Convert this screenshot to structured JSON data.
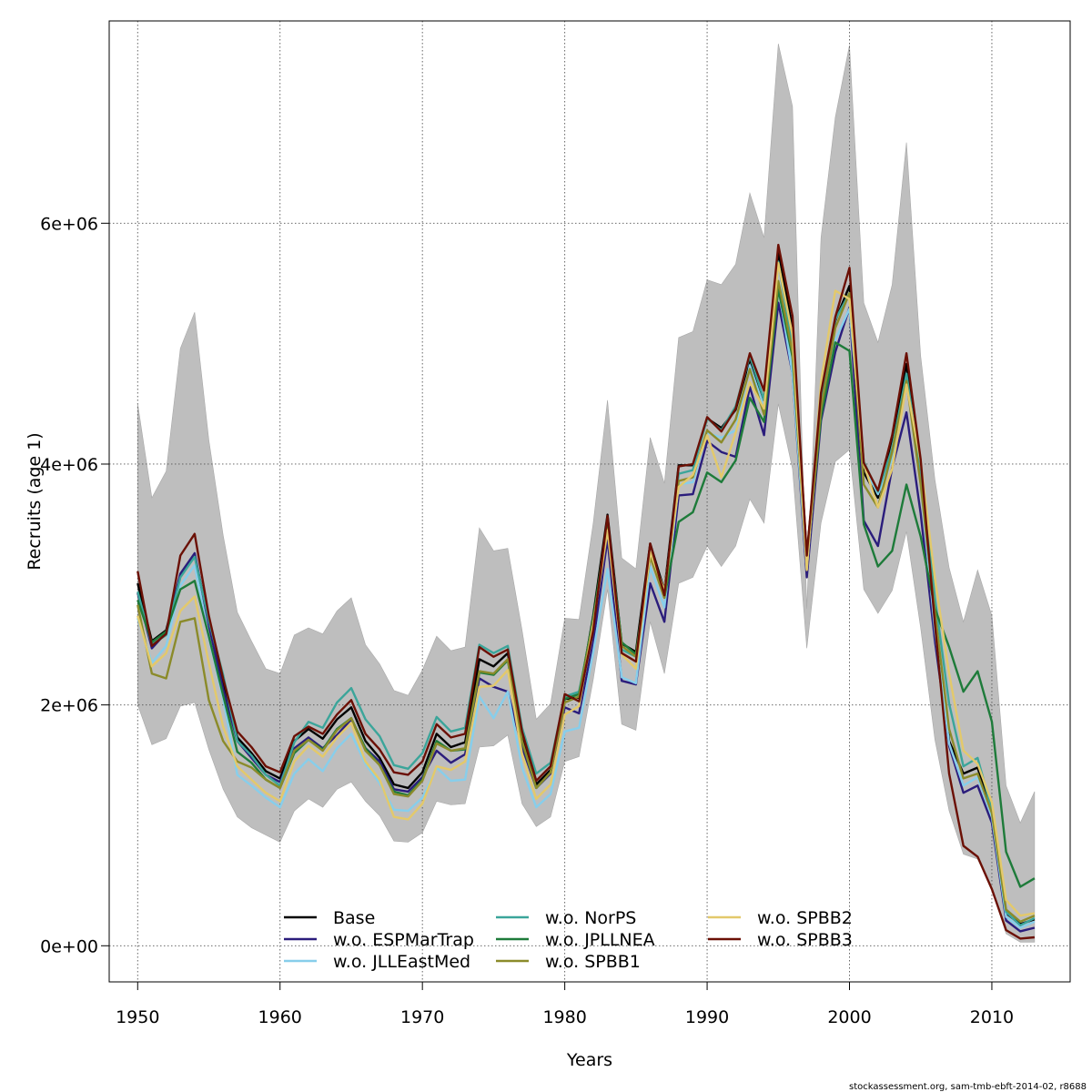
{
  "chart_data": {
    "type": "line",
    "xlabel": "Years",
    "ylabel": "Recruits (age 1)",
    "xlim": [
      1948,
      2015.5
    ],
    "ylim": [
      -300000,
      7680000
    ],
    "xticks": [
      1950,
      1960,
      1970,
      1980,
      1990,
      2000,
      2010
    ],
    "xtick_labels": [
      "1950",
      "1960",
      "1970",
      "1980",
      "1990",
      "2000",
      "2010"
    ],
    "yticks": [
      0,
      2000000,
      4000000,
      6000000
    ],
    "ytick_labels": [
      "0e+00",
      "2e+06",
      "4e+06",
      "6e+06"
    ],
    "grid": true,
    "legend_placement": "bottom",
    "footer": "stockassessment.org, sam-tmb-ebft-2014-02, r8688",
    "band_color": "#bebebe",
    "x": [
      1950,
      1951,
      1952,
      1953,
      1954,
      1955,
      1956,
      1957,
      1958,
      1959,
      1960,
      1961,
      1962,
      1963,
      1964,
      1965,
      1966,
      1967,
      1968,
      1969,
      1970,
      1971,
      1972,
      1973,
      1974,
      1975,
      1976,
      1977,
      1978,
      1979,
      1980,
      1981,
      1982,
      1983,
      1984,
      1985,
      1986,
      1987,
      1988,
      1989,
      1990,
      1991,
      1992,
      1993,
      1994,
      1995,
      1996,
      1997,
      1998,
      1999,
      2000,
      2001,
      2002,
      2003,
      2004,
      2005,
      2006,
      2007,
      2008,
      2009,
      2010,
      2011,
      2012,
      2013
    ],
    "band_upper": [
      4500000,
      3720000,
      3940000,
      4960000,
      5260000,
      4200000,
      3410000,
      2770000,
      2530000,
      2300000,
      2260000,
      2580000,
      2640000,
      2590000,
      2780000,
      2890000,
      2500000,
      2340000,
      2120000,
      2080000,
      2290000,
      2570000,
      2450000,
      2480000,
      3470000,
      3280000,
      3300000,
      2620000,
      1880000,
      2010000,
      2720000,
      2710000,
      3510000,
      4530000,
      3220000,
      3130000,
      4220000,
      3840000,
      5050000,
      5100000,
      5530000,
      5490000,
      5660000,
      6250000,
      5880000,
      7490000,
      6970000,
      2800000,
      5880000,
      6880000,
      7480000,
      5340000,
      5010000,
      5490000,
      6670000,
      4900000,
      3870000,
      3140000,
      2690000,
      3120000,
      2740000,
      1330000,
      1020000,
      1280000
    ],
    "band_lower": [
      2000000,
      1670000,
      1720000,
      1990000,
      2020000,
      1630000,
      1300000,
      1070000,
      980000,
      920000,
      860000,
      1120000,
      1220000,
      1150000,
      1300000,
      1360000,
      1200000,
      1080000,
      870000,
      860000,
      940000,
      1200000,
      1170000,
      1180000,
      1650000,
      1660000,
      1750000,
      1180000,
      990000,
      1070000,
      1530000,
      1570000,
      2210000,
      2960000,
      1840000,
      1790000,
      2690000,
      2260000,
      3010000,
      3060000,
      3320000,
      3150000,
      3320000,
      3710000,
      3510000,
      4500000,
      3960000,
      2470000,
      3510000,
      4020000,
      4120000,
      2960000,
      2760000,
      2950000,
      3440000,
      2640000,
      1710000,
      1120000,
      760000,
      720000,
      470000,
      100000,
      30000,
      30000
    ],
    "series": [
      {
        "name": "Base",
        "color": "#000000",
        "values": [
          3010000,
          2530000,
          2620000,
          3080000,
          3240000,
          2700000,
          2190000,
          1730000,
          1600000,
          1450000,
          1390000,
          1700000,
          1800000,
          1720000,
          1880000,
          1980000,
          1700000,
          1560000,
          1340000,
          1310000,
          1440000,
          1760000,
          1650000,
          1690000,
          2380000,
          2320000,
          2430000,
          1760000,
          1340000,
          1460000,
          2050000,
          2060000,
          2740000,
          3580000,
          2510000,
          2440000,
          3340000,
          2950000,
          3990000,
          3990000,
          4380000,
          4300000,
          4450000,
          4870000,
          4530000,
          5760000,
          5130000,
          3240000,
          4520000,
          5190000,
          5480000,
          3930000,
          3720000,
          4220000,
          4830000,
          3900000,
          2770000,
          1700000,
          1430000,
          1480000,
          1100000,
          270000,
          180000,
          220000
        ]
      },
      {
        "name": "w.o. ESPMarTrap",
        "color": "#2b1d7c",
        "values": [
          2930000,
          2470000,
          2600000,
          3090000,
          3260000,
          2660000,
          2130000,
          1700000,
          1560000,
          1420000,
          1360000,
          1640000,
          1730000,
          1640000,
          1750000,
          1880000,
          1640000,
          1530000,
          1300000,
          1280000,
          1400000,
          1620000,
          1520000,
          1590000,
          2220000,
          2150000,
          2110000,
          1650000,
          1310000,
          1430000,
          1980000,
          1930000,
          2520000,
          3380000,
          2200000,
          2170000,
          3010000,
          2690000,
          3740000,
          3750000,
          4190000,
          4100000,
          4060000,
          4640000,
          4240000,
          5340000,
          4750000,
          3060000,
          4360000,
          4930000,
          5300000,
          3530000,
          3320000,
          3970000,
          4430000,
          3590000,
          2530000,
          1660000,
          1270000,
          1330000,
          1020000,
          210000,
          120000,
          150000
        ]
      },
      {
        "name": "w.o. JLLEastMed",
        "color": "#87ceeb",
        "values": [
          2720000,
          2350000,
          2490000,
          2990000,
          3160000,
          2560000,
          2050000,
          1420000,
          1330000,
          1230000,
          1150000,
          1430000,
          1550000,
          1450000,
          1640000,
          1760000,
          1510000,
          1350000,
          1130000,
          1120000,
          1230000,
          1480000,
          1370000,
          1380000,
          2070000,
          1890000,
          2110000,
          1480000,
          1150000,
          1260000,
          1780000,
          1810000,
          2440000,
          3130000,
          2230000,
          2180000,
          3150000,
          2810000,
          3830000,
          3850000,
          4260000,
          4220000,
          4280000,
          4820000,
          4460000,
          5470000,
          4750000,
          3130000,
          4510000,
          5030000,
          5290000,
          3990000,
          3750000,
          4040000,
          4730000,
          3840000,
          2620000,
          1680000,
          1330000,
          1400000,
          1070000,
          240000,
          150000,
          200000
        ]
      },
      {
        "name": "w.o. NorPS",
        "color": "#3ba59a",
        "values": [
          2940000,
          2500000,
          2580000,
          3060000,
          3230000,
          2700000,
          2250000,
          1700000,
          1580000,
          1420000,
          1330000,
          1690000,
          1860000,
          1810000,
          2020000,
          2140000,
          1880000,
          1740000,
          1500000,
          1470000,
          1600000,
          1900000,
          1780000,
          1810000,
          2500000,
          2430000,
          2490000,
          1810000,
          1430000,
          1520000,
          2070000,
          2110000,
          2670000,
          3530000,
          2460000,
          2400000,
          3250000,
          2930000,
          3920000,
          3950000,
          4380000,
          4280000,
          4480000,
          4900000,
          4530000,
          5680000,
          4970000,
          3180000,
          4560000,
          5200000,
          5420000,
          4020000,
          3770000,
          4130000,
          4750000,
          3950000,
          2890000,
          2010000,
          1490000,
          1560000,
          1130000,
          280000,
          170000,
          230000
        ]
      },
      {
        "name": "w.o. JPLLNEA",
        "color": "#1e7b3a",
        "values": [
          2870000,
          2520000,
          2610000,
          2960000,
          3030000,
          2570000,
          2080000,
          1610000,
          1520000,
          1380000,
          1310000,
          1600000,
          1710000,
          1630000,
          1800000,
          1890000,
          1640000,
          1500000,
          1280000,
          1250000,
          1380000,
          1700000,
          1620000,
          1630000,
          2270000,
          2250000,
          2370000,
          1690000,
          1310000,
          1440000,
          2050000,
          2090000,
          2720000,
          3510000,
          2520000,
          2420000,
          3240000,
          2890000,
          3520000,
          3600000,
          3930000,
          3850000,
          4030000,
          4550000,
          4350000,
          5450000,
          4890000,
          3200000,
          4390000,
          5010000,
          4940000,
          3500000,
          3150000,
          3280000,
          3830000,
          3400000,
          2800000,
          2480000,
          2110000,
          2280000,
          1860000,
          780000,
          490000,
          560000
        ]
      },
      {
        "name": "w.o. SPBB1",
        "color": "#8b8b2a",
        "values": [
          2830000,
          2260000,
          2220000,
          2690000,
          2720000,
          2040000,
          1700000,
          1530000,
          1480000,
          1380000,
          1310000,
          1620000,
          1710000,
          1620000,
          1790000,
          1890000,
          1620000,
          1500000,
          1260000,
          1240000,
          1370000,
          1680000,
          1620000,
          1640000,
          2280000,
          2260000,
          2380000,
          1700000,
          1310000,
          1440000,
          2020000,
          2070000,
          2690000,
          3460000,
          2490000,
          2400000,
          3230000,
          2890000,
          3860000,
          3890000,
          4280000,
          4180000,
          4370000,
          4790000,
          4410000,
          5520000,
          4930000,
          3150000,
          4460000,
          5130000,
          5420000,
          3830000,
          3640000,
          4100000,
          4690000,
          3830000,
          2770000,
          1800000,
          1390000,
          1430000,
          1100000,
          300000,
          200000,
          250000
        ]
      },
      {
        "name": "w.o. SPBB2",
        "color": "#e3c96b",
        "values": [
          2740000,
          2320000,
          2430000,
          2780000,
          2900000,
          2350000,
          1820000,
          1490000,
          1380000,
          1270000,
          1200000,
          1530000,
          1660000,
          1570000,
          1730000,
          1850000,
          1530000,
          1380000,
          1070000,
          1050000,
          1180000,
          1490000,
          1460000,
          1530000,
          2150000,
          2160000,
          2290000,
          1590000,
          1220000,
          1340000,
          1920000,
          1990000,
          2670000,
          3450000,
          2420000,
          2300000,
          3270000,
          2950000,
          3810000,
          3910000,
          4240000,
          3890000,
          4260000,
          4680000,
          4460000,
          5670000,
          5070000,
          3120000,
          4680000,
          5440000,
          5370000,
          4000000,
          3640000,
          3960000,
          4660000,
          4020000,
          3050000,
          2260000,
          1620000,
          1510000,
          1190000,
          380000,
          250000,
          270000
        ]
      },
      {
        "name": "w.o. SPBB3",
        "color": "#6b1005",
        "values": [
          3110000,
          2490000,
          2590000,
          3240000,
          3420000,
          2740000,
          2220000,
          1780000,
          1650000,
          1490000,
          1440000,
          1740000,
          1820000,
          1760000,
          1920000,
          2040000,
          1760000,
          1630000,
          1440000,
          1420000,
          1530000,
          1840000,
          1730000,
          1760000,
          2480000,
          2400000,
          2460000,
          1780000,
          1370000,
          1490000,
          2090000,
          2030000,
          2620000,
          3570000,
          2430000,
          2360000,
          3340000,
          2910000,
          3980000,
          4000000,
          4390000,
          4270000,
          4460000,
          4920000,
          4610000,
          5820000,
          5230000,
          3240000,
          4590000,
          5220000,
          5630000,
          4010000,
          3780000,
          4240000,
          4920000,
          4040000,
          2670000,
          1430000,
          830000,
          740000,
          470000,
          130000,
          60000,
          70000
        ]
      }
    ]
  }
}
